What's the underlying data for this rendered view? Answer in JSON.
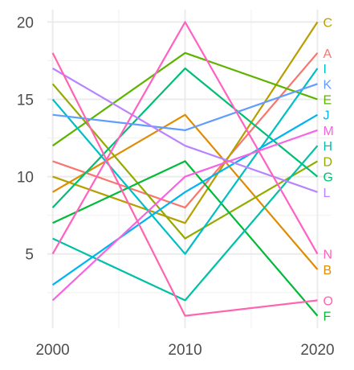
{
  "chart_data": {
    "type": "line",
    "title": "",
    "xlabel": "",
    "ylabel": "",
    "x": [
      2000,
      2010,
      2020
    ],
    "xlim": [
      1999.6,
      2021
    ],
    "ylim": [
      0.2,
      20.8
    ],
    "xticks": [
      2000,
      2010,
      2020
    ],
    "yticks": [
      5,
      10,
      15,
      20
    ],
    "x_tick_labels": [
      "2000",
      "2010",
      "2020"
    ],
    "y_tick_labels": [
      "5",
      "10",
      "15",
      "20"
    ],
    "grid": true,
    "legend": "direct-labels-right",
    "series": [
      {
        "name": "A",
        "color": "#F8766D",
        "values": [
          11,
          8,
          18
        ]
      },
      {
        "name": "B",
        "color": "#DE8C00",
        "values": [
          9,
          14,
          4
        ]
      },
      {
        "name": "C",
        "color": "#B79F00",
        "values": [
          10,
          7,
          20
        ]
      },
      {
        "name": "D",
        "color": "#93AA00",
        "values": [
          16,
          6,
          11
        ]
      },
      {
        "name": "E",
        "color": "#5EB300",
        "values": [
          12,
          18,
          15
        ]
      },
      {
        "name": "F",
        "color": "#00BA38",
        "values": [
          7,
          11,
          1
        ]
      },
      {
        "name": "G",
        "color": "#00BF74",
        "values": [
          8,
          17,
          10
        ]
      },
      {
        "name": "H",
        "color": "#00C1A7",
        "values": [
          6,
          2,
          12
        ]
      },
      {
        "name": "I",
        "color": "#00BFC4",
        "values": [
          15,
          5,
          17
        ]
      },
      {
        "name": "J",
        "color": "#00B4F0",
        "values": [
          3,
          9,
          14
        ]
      },
      {
        "name": "K",
        "color": "#619CFF",
        "values": [
          14,
          13,
          16
        ]
      },
      {
        "name": "L",
        "color": "#B983FF",
        "values": [
          17,
          12,
          9
        ]
      },
      {
        "name": "M",
        "color": "#F564E3",
        "values": [
          2,
          10,
          13
        ]
      },
      {
        "name": "N",
        "color": "#FF61C3",
        "values": [
          5,
          20,
          5
        ]
      },
      {
        "name": "O",
        "color": "#FF64B0",
        "values": [
          18,
          1,
          2
        ]
      }
    ]
  }
}
